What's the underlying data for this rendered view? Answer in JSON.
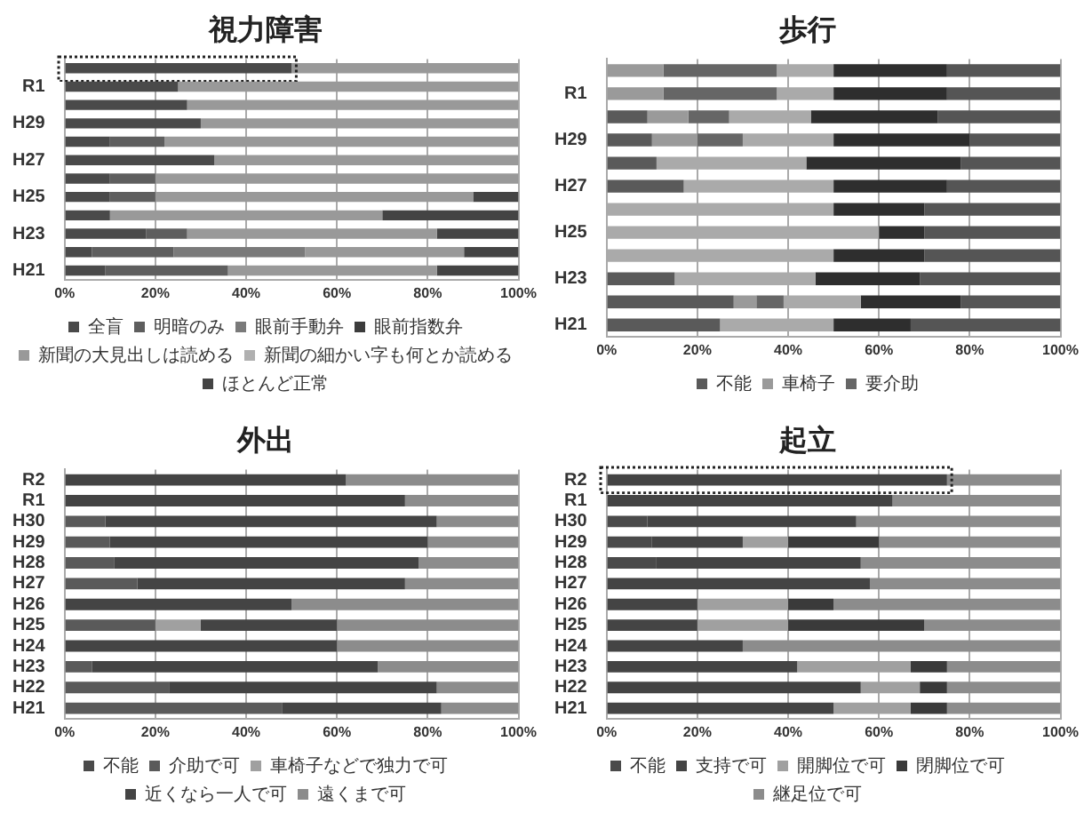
{
  "chart_data": [
    {
      "type": "bar",
      "title": "視力障害",
      "orientation": "horizontal",
      "stacked": true,
      "legend": "bottom",
      "grid": "x",
      "xlim": [
        0,
        100
      ],
      "xticks": [
        {
          "value": 0,
          "label": "0%"
        },
        {
          "value": 20,
          "label": "20%"
        },
        {
          "value": 40,
          "label": "40%"
        },
        {
          "value": 60,
          "label": "60%"
        },
        {
          "value": 80,
          "label": "80%"
        },
        {
          "value": 100,
          "label": "100%"
        }
      ],
      "categories": [
        null,
        "R1",
        null,
        "H29",
        null,
        "H27",
        null,
        "H25",
        null,
        "H23",
        null,
        "H21"
      ],
      "series": [
        {
          "name": "全盲",
          "color": "#4a4a4a",
          "values": [
            50,
            25,
            27,
            30,
            10,
            33,
            10,
            10,
            10,
            18,
            6,
            9
          ]
        },
        {
          "name": "明暗のみ",
          "color": "#5e5e5e",
          "values": [
            0,
            0,
            0,
            0,
            12,
            0,
            10,
            10,
            0,
            9,
            18,
            27
          ]
        },
        {
          "name": "眼前手動弁",
          "color": "#7a7a7a",
          "values": [
            0,
            0,
            0,
            0,
            0,
            0,
            0,
            0,
            0,
            0,
            29,
            0
          ]
        },
        {
          "name": "眼前指数弁",
          "color": "#3c3c3c",
          "values": [
            0,
            0,
            0,
            0,
            0,
            0,
            0,
            0,
            0,
            0,
            0,
            0
          ]
        },
        {
          "name": "新聞の大見出しは読める",
          "color": "#999999",
          "values": [
            50,
            75,
            73,
            70,
            78,
            67,
            80,
            70,
            60,
            55,
            35,
            46
          ]
        },
        {
          "name": "新聞の細かい字も何とか読める",
          "color": "#b0b0b0",
          "values": [
            0,
            0,
            0,
            0,
            0,
            0,
            0,
            0,
            0,
            0,
            0,
            0
          ]
        },
        {
          "name": "ほとんど正常",
          "color": "#444444",
          "values": [
            0,
            0,
            0,
            0,
            0,
            0,
            0,
            10,
            30,
            18,
            12,
            18
          ]
        }
      ]
    },
    {
      "type": "bar",
      "title": "歩行",
      "orientation": "horizontal",
      "stacked": true,
      "legend": "bottom",
      "grid": "x",
      "xlim": [
        0,
        100
      ],
      "xticks": [
        {
          "value": 0,
          "label": "0%"
        },
        {
          "value": 20,
          "label": "20%"
        },
        {
          "value": 40,
          "label": "40%"
        },
        {
          "value": 60,
          "label": "60%"
        },
        {
          "value": 80,
          "label": "80%"
        },
        {
          "value": 100,
          "label": "100%"
        }
      ],
      "categories": [
        null,
        "R1",
        null,
        "H29",
        null,
        "H27",
        null,
        "H25",
        null,
        "H23",
        null,
        "H21"
      ],
      "series": [
        {
          "name": "不能",
          "color": "#5a5a5a",
          "values": [
            0,
            0,
            9,
            10,
            11,
            17,
            0,
            0,
            0,
            15,
            28,
            25
          ]
        },
        {
          "name": "車椅子",
          "color": "#9a9a9a",
          "values": [
            12.5,
            12.5,
            9,
            10,
            0,
            0,
            0,
            0,
            0,
            0,
            5,
            0
          ]
        },
        {
          "name": "要介助",
          "color": "#666666",
          "values": [
            25,
            25,
            9,
            10,
            0,
            0,
            0,
            0,
            0,
            0,
            6,
            0
          ]
        },
        {
          "color": "#aaaaaa",
          "values": [
            12.5,
            12.5,
            18,
            20,
            33,
            33,
            50,
            60,
            50,
            31,
            17,
            25
          ]
        },
        {
          "color": "#2e2e2e",
          "values": [
            25,
            25,
            28,
            30,
            34,
            25,
            20,
            10,
            20,
            23,
            22,
            17
          ]
        },
        {
          "color": "#555555",
          "values": [
            25,
            25,
            27,
            20,
            22,
            25,
            30,
            30,
            30,
            31,
            22,
            33
          ]
        }
      ]
    },
    {
      "type": "bar",
      "title": "外出",
      "orientation": "horizontal",
      "stacked": true,
      "legend": "bottom",
      "grid": "x",
      "xlim": [
        0,
        100
      ],
      "xticks": [
        {
          "value": 0,
          "label": "0%"
        },
        {
          "value": 20,
          "label": "20%"
        },
        {
          "value": 40,
          "label": "40%"
        },
        {
          "value": 60,
          "label": "60%"
        },
        {
          "value": 80,
          "label": "80%"
        },
        {
          "value": 100,
          "label": "100%"
        }
      ],
      "categories": [
        "R2",
        "R1",
        "H30",
        "H29",
        "H28",
        "H27",
        "H26",
        "H25",
        "H24",
        "H23",
        "H22",
        "H21"
      ],
      "series": [
        {
          "name": "不能",
          "color": "#4a4a4a",
          "values": [
            0,
            0,
            0,
            0,
            0,
            0,
            0,
            0,
            0,
            0,
            0,
            0
          ]
        },
        {
          "name": "介助で可",
          "color": "#5a5a5a",
          "values": [
            0,
            0,
            9,
            10,
            11,
            16,
            0,
            20,
            0,
            6,
            23,
            48
          ]
        },
        {
          "name": "車椅子などで独力で可",
          "color": "#a0a0a0",
          "values": [
            0,
            0,
            0,
            0,
            0,
            0,
            0,
            10,
            0,
            0,
            0,
            0
          ]
        },
        {
          "name": "近くなら一人で可",
          "color": "#444444",
          "values": [
            62,
            75,
            73,
            70,
            67,
            59,
            50,
            30,
            60,
            63,
            59,
            35
          ]
        },
        {
          "name": "遠くまで可",
          "color": "#8c8c8c",
          "values": [
            38,
            25,
            18,
            20,
            22,
            25,
            50,
            40,
            40,
            31,
            18,
            17
          ]
        }
      ]
    },
    {
      "type": "bar",
      "title": "起立",
      "orientation": "horizontal",
      "stacked": true,
      "legend": "bottom",
      "grid": "x",
      "xlim": [
        0,
        100
      ],
      "xticks": [
        {
          "value": 0,
          "label": "0%"
        },
        {
          "value": 20,
          "label": "20%"
        },
        {
          "value": 40,
          "label": "40%"
        },
        {
          "value": 60,
          "label": "60%"
        },
        {
          "value": 80,
          "label": "80%"
        },
        {
          "value": 100,
          "label": "100%"
        }
      ],
      "categories": [
        "R2",
        "R1",
        "H30",
        "H29",
        "H28",
        "H27",
        "H26",
        "H25",
        "H24",
        "H23",
        "H22",
        "H21"
      ],
      "series": [
        {
          "name": "不能",
          "color": "#4a4a4a",
          "values": [
            0,
            0,
            9,
            10,
            11,
            0,
            0,
            0,
            0,
            0,
            0,
            0
          ]
        },
        {
          "name": "支持で可",
          "color": "#444444",
          "values": [
            75,
            63,
            46,
            20,
            45,
            58,
            20,
            20,
            30,
            42,
            56,
            50
          ]
        },
        {
          "name": "開脚位で可",
          "color": "#a0a0a0",
          "values": [
            0,
            0,
            0,
            10,
            0,
            0,
            20,
            20,
            0,
            25,
            13,
            17
          ]
        },
        {
          "name": "閉脚位で可",
          "color": "#3a3a3a",
          "values": [
            0,
            0,
            0,
            20,
            0,
            0,
            10,
            30,
            0,
            8,
            6,
            8
          ]
        },
        {
          "name": "継足位で可",
          "color": "#8c8c8c",
          "values": [
            25,
            37,
            45,
            40,
            44,
            42,
            50,
            30,
            70,
            25,
            25,
            25
          ]
        }
      ]
    }
  ]
}
